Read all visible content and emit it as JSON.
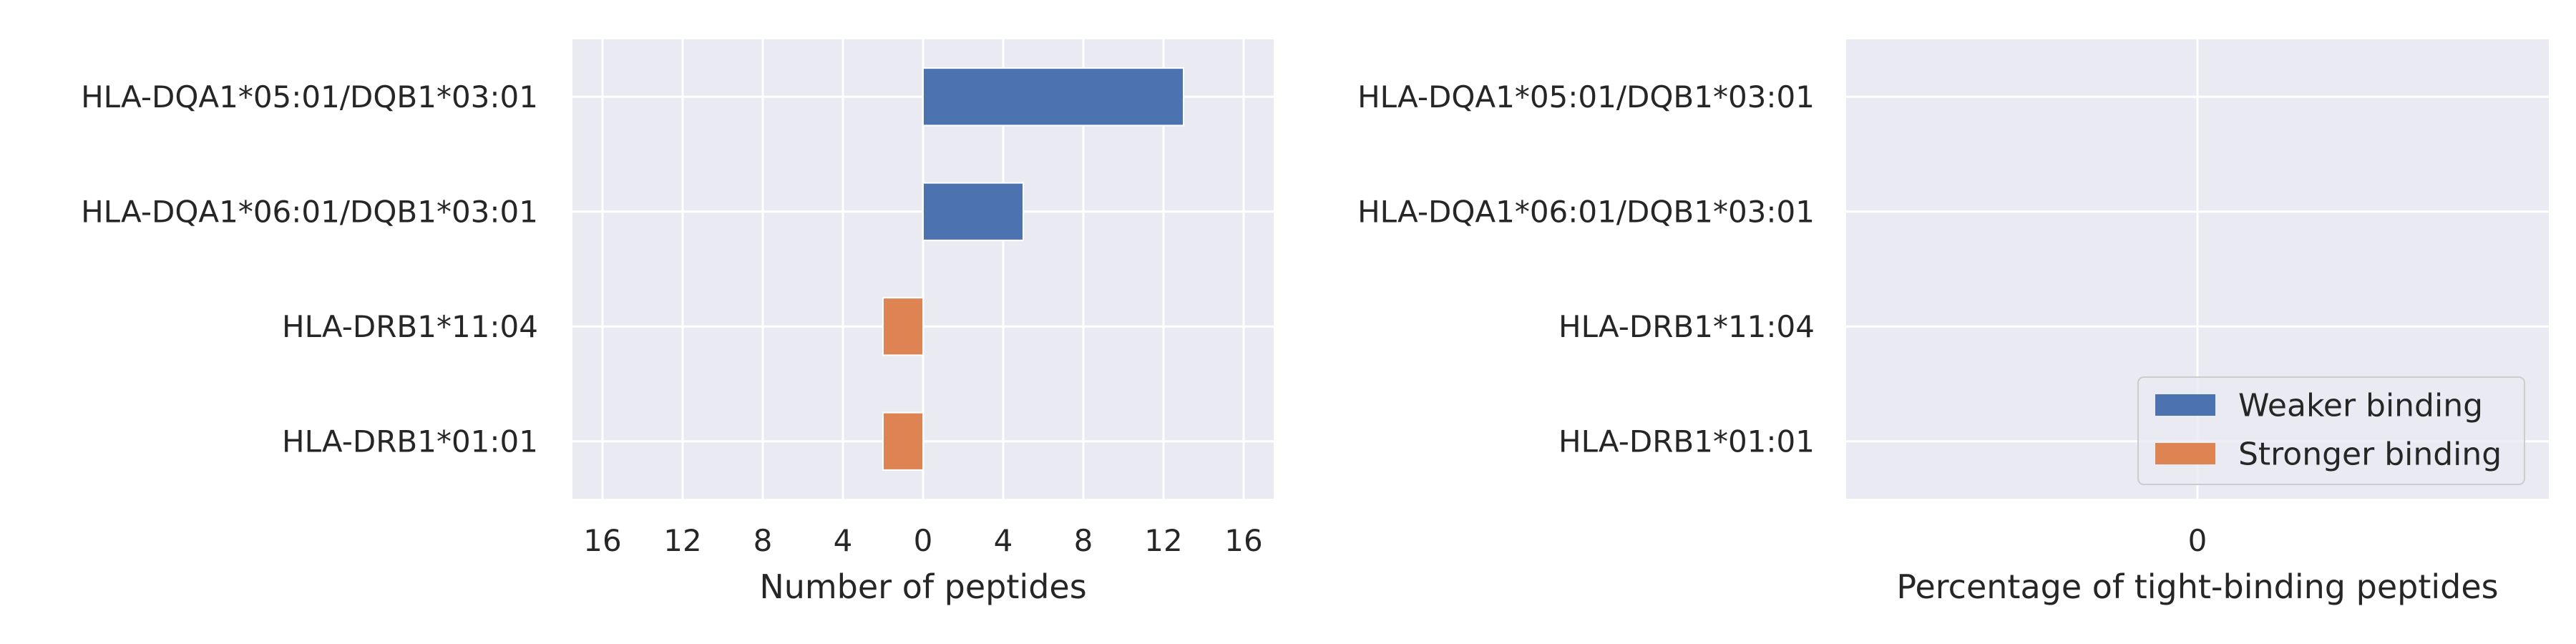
{
  "chart_data": [
    {
      "type": "bar",
      "orientation": "horizontal",
      "categories": [
        "HLA-DQA1*05:01/DQB1*03:01",
        "HLA-DQA1*06:01/DQB1*03:01",
        "HLA-DRB1*11:04",
        "HLA-DRB1*01:01"
      ],
      "series": [
        {
          "name": "Weaker binding",
          "values": [
            13,
            5,
            0,
            0
          ],
          "color": "#4c72b0"
        },
        {
          "name": "Stronger binding",
          "values": [
            0,
            0,
            -2,
            -2
          ],
          "color": "#dd8452"
        }
      ],
      "xlabel": "Number of peptides",
      "xlim": [
        -17.5,
        17.5
      ],
      "xticks": [
        -16,
        -12,
        -8,
        -4,
        0,
        4,
        8,
        12,
        16
      ],
      "xtick_labels": [
        "16",
        "12",
        "8",
        "4",
        "0",
        "4",
        "8",
        "12",
        "16"
      ],
      "grid": true
    },
    {
      "type": "bar",
      "orientation": "horizontal",
      "categories": [
        "HLA-DQA1*05:01/DQB1*03:01",
        "HLA-DQA1*06:01/DQB1*03:01",
        "HLA-DRB1*11:04",
        "HLA-DRB1*01:01"
      ],
      "series": [
        {
          "name": "Weaker binding",
          "values": [
            0,
            0,
            0,
            0
          ],
          "color": "#4c72b0"
        },
        {
          "name": "Stronger binding",
          "values": [
            0,
            0,
            0,
            0
          ],
          "color": "#dd8452"
        }
      ],
      "xlabel": "Percentage of tight-binding peptides",
      "xlim": [
        -0.055,
        0.055
      ],
      "xticks": [
        0
      ],
      "xtick_labels": [
        "0"
      ],
      "grid": true,
      "legend": {
        "placement": "lower-right",
        "entries": [
          "Weaker binding",
          "Stronger binding"
        ]
      }
    }
  ]
}
